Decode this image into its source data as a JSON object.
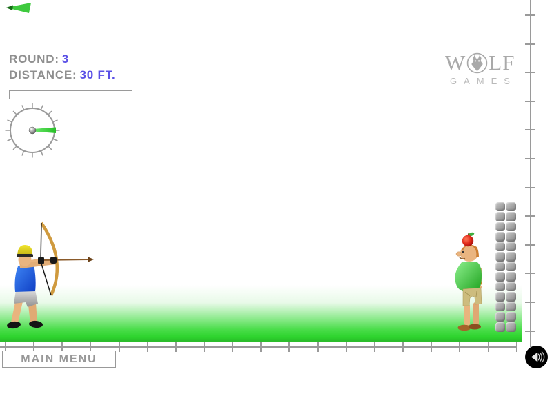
{
  "hud": {
    "round_label": "ROUND:",
    "round_value": "3",
    "distance_label": "DISTANCE:",
    "distance_value": "30 FT.",
    "power_bar_percent": 0
  },
  "gauge": {
    "needle_angle_deg": 0,
    "tick_count": 16
  },
  "logo": {
    "name_left": "W",
    "name_right": "LF",
    "subtitle": "GAMES"
  },
  "menu": {
    "main_menu_label": "MAIN MENU"
  },
  "icons": {
    "sound": "speaker-waves-icon",
    "logo_mark": "wolf-head-icon",
    "gauge_pointer": "green-needle-icon"
  },
  "colors": {
    "hud_label": "#8f8f8f",
    "hud_value": "#5a50e6",
    "ground_green": "#2ed42e",
    "ruler_gray": "#9a9a9a",
    "logo_gray": "#a9a9a9",
    "needle_green": "#3ecb3e"
  }
}
